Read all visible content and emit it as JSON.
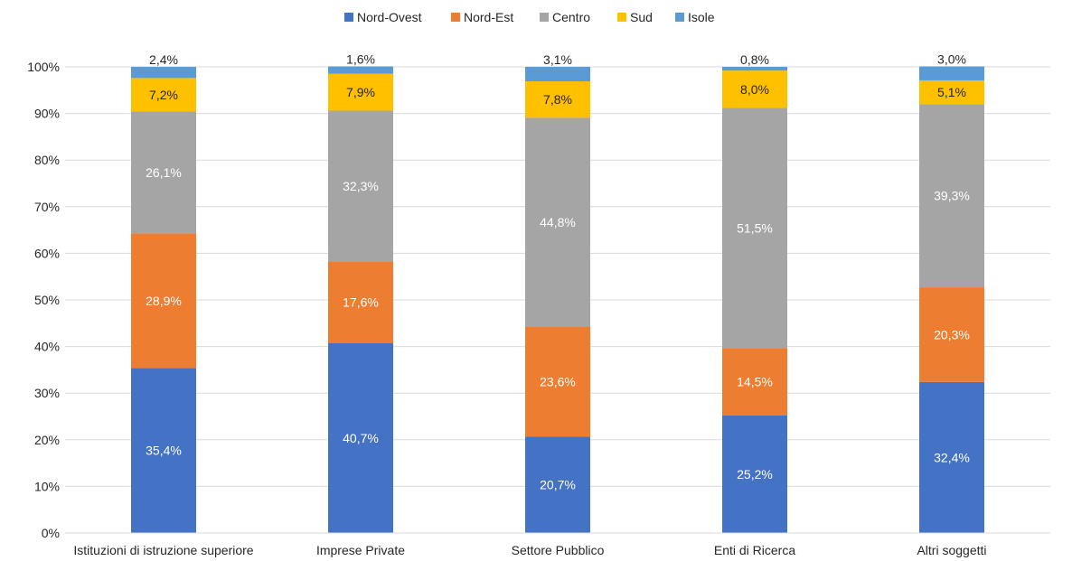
{
  "chart_data": {
    "type": "bar",
    "stacked": true,
    "percent_stacked": true,
    "categories": [
      "Istituzioni di istruzione superiore",
      "Imprese Private",
      "Settore Pubblico",
      "Enti di Ricerca",
      "Altri soggetti"
    ],
    "series": [
      {
        "name": "Nord-Ovest",
        "color": "#4472C4",
        "values": [
          35.4,
          40.7,
          20.7,
          25.2,
          32.4
        ],
        "labels": [
          "35,4%",
          "40,7%",
          "20,7%",
          "25,2%",
          "32,4%"
        ],
        "label_color": "#ffffff"
      },
      {
        "name": "Nord-Est",
        "color": "#ED7D31",
        "values": [
          28.9,
          17.6,
          23.6,
          14.5,
          20.3
        ],
        "labels": [
          "28,9%",
          "17,6%",
          "23,6%",
          "14,5%",
          "20,3%"
        ],
        "label_color": "#ffffff"
      },
      {
        "name": "Centro",
        "color": "#A5A5A5",
        "values": [
          26.1,
          32.3,
          44.8,
          51.5,
          39.3
        ],
        "labels": [
          "26,1%",
          "32,3%",
          "44,8%",
          "51,5%",
          "39,3%"
        ],
        "label_color": "#ffffff"
      },
      {
        "name": "Sud",
        "color": "#FFC000",
        "values": [
          7.2,
          7.9,
          7.8,
          8.0,
          5.1
        ],
        "labels": [
          "7,2%",
          "7,9%",
          "7,8%",
          "8,0%",
          "5,1%"
        ],
        "label_color": "#262626"
      },
      {
        "name": "Isole",
        "color": "#5B9BD5",
        "values": [
          2.4,
          1.6,
          3.1,
          0.8,
          3.0
        ],
        "labels": [
          "2,4%",
          "1,6%",
          "3,1%",
          "0,8%",
          "3,0%"
        ],
        "label_color": "#262626"
      }
    ],
    "ylim": [
      0,
      100
    ],
    "yticks": [
      "0%",
      "10%",
      "20%",
      "30%",
      "40%",
      "50%",
      "60%",
      "70%",
      "80%",
      "90%",
      "100%"
    ],
    "grid": true,
    "legend_position": "top-center"
  }
}
